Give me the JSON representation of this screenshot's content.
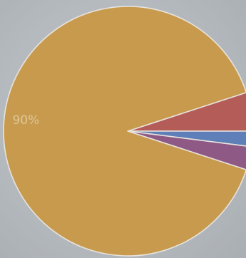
{
  "chart_data": {
    "type": "pie",
    "title": "",
    "labels": [
      "",
      "",
      "",
      ""
    ],
    "values": [
      90,
      5,
      2,
      3
    ],
    "colors": [
      "#c89a4e",
      "#b45c58",
      "#5f7fb8",
      "#8e5a85"
    ],
    "data_labels": [
      "90%",
      "",
      "",
      ""
    ],
    "legend": "none"
  }
}
